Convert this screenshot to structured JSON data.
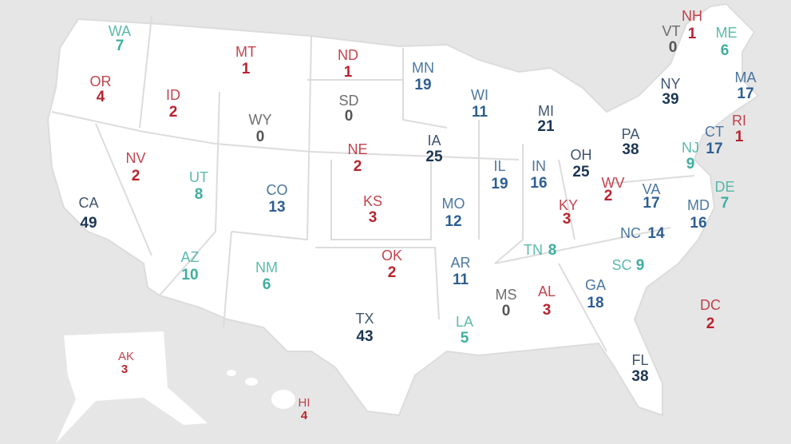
{
  "map": {
    "states": [
      {
        "abbr": "WA",
        "value": 7,
        "color": "#3fae9f"
      },
      {
        "abbr": "OR",
        "value": 4,
        "color": "#b8232f"
      },
      {
        "abbr": "ID",
        "value": 2,
        "color": "#b8232f"
      },
      {
        "abbr": "MT",
        "value": 1,
        "color": "#b8232f"
      },
      {
        "abbr": "ND",
        "value": 1,
        "color": "#b8232f"
      },
      {
        "abbr": "MN",
        "value": 19,
        "color": "#2d5f92"
      },
      {
        "abbr": "WI",
        "value": 11,
        "color": "#2d5f92"
      },
      {
        "abbr": "MI",
        "value": 21,
        "color": "#1c3553"
      },
      {
        "abbr": "NY",
        "value": 39,
        "color": "#1c3553"
      },
      {
        "abbr": "VT",
        "value": 0,
        "color": "#555555"
      },
      {
        "abbr": "NH",
        "value": 1,
        "color": "#b8232f"
      },
      {
        "abbr": "ME",
        "value": 6,
        "color": "#3fae9f"
      },
      {
        "abbr": "MA",
        "value": 17,
        "color": "#2d5f92"
      },
      {
        "abbr": "RI",
        "value": 1,
        "color": "#b8232f"
      },
      {
        "abbr": "CT",
        "value": 17,
        "color": "#2d5f92"
      },
      {
        "abbr": "NJ",
        "value": 9,
        "color": "#3fae9f"
      },
      {
        "abbr": "DE",
        "value": 7,
        "color": "#3fae9f"
      },
      {
        "abbr": "MD",
        "value": 16,
        "color": "#2d5f92"
      },
      {
        "abbr": "PA",
        "value": 38,
        "color": "#1c3553"
      },
      {
        "abbr": "OH",
        "value": 25,
        "color": "#1c3553"
      },
      {
        "abbr": "WV",
        "value": 2,
        "color": "#b8232f"
      },
      {
        "abbr": "VA",
        "value": 17,
        "color": "#2d5f92"
      },
      {
        "abbr": "NC",
        "value": 14,
        "color": "#2d5f92"
      },
      {
        "abbr": "SC",
        "value": 9,
        "color": "#3fae9f"
      },
      {
        "abbr": "GA",
        "value": 18,
        "color": "#2d5f92"
      },
      {
        "abbr": "FL",
        "value": 38,
        "color": "#1c3553"
      },
      {
        "abbr": "AL",
        "value": 3,
        "color": "#b8232f"
      },
      {
        "abbr": "MS",
        "value": 0,
        "color": "#555555"
      },
      {
        "abbr": "TN",
        "value": 8,
        "color": "#3fae9f"
      },
      {
        "abbr": "KY",
        "value": 3,
        "color": "#b8232f"
      },
      {
        "abbr": "IN",
        "value": 16,
        "color": "#2d5f92"
      },
      {
        "abbr": "IL",
        "value": 19,
        "color": "#2d5f92"
      },
      {
        "abbr": "IA",
        "value": 25,
        "color": "#1c3553"
      },
      {
        "abbr": "MO",
        "value": 12,
        "color": "#2d5f92"
      },
      {
        "abbr": "AR",
        "value": 11,
        "color": "#2d5f92"
      },
      {
        "abbr": "LA",
        "value": 5,
        "color": "#3fae9f"
      },
      {
        "abbr": "TX",
        "value": 43,
        "color": "#1c3553"
      },
      {
        "abbr": "OK",
        "value": 2,
        "color": "#b8232f"
      },
      {
        "abbr": "KS",
        "value": 3,
        "color": "#b8232f"
      },
      {
        "abbr": "NE",
        "value": 2,
        "color": "#b8232f"
      },
      {
        "abbr": "SD",
        "value": 0,
        "color": "#555555"
      },
      {
        "abbr": "WY",
        "value": 0,
        "color": "#555555"
      },
      {
        "abbr": "CO",
        "value": 13,
        "color": "#2d5f92"
      },
      {
        "abbr": "UT",
        "value": 8,
        "color": "#3fae9f"
      },
      {
        "abbr": "NV",
        "value": 2,
        "color": "#b8232f"
      },
      {
        "abbr": "CA",
        "value": 49,
        "color": "#1c3553"
      },
      {
        "abbr": "AZ",
        "value": 10,
        "color": "#3fae9f"
      },
      {
        "abbr": "NM",
        "value": 6,
        "color": "#3fae9f"
      },
      {
        "abbr": "AK",
        "value": 3,
        "color": "#b8232f"
      },
      {
        "abbr": "HI",
        "value": 4,
        "color": "#b8232f"
      },
      {
        "abbr": "DC",
        "value": 2,
        "color": "#b8232f"
      }
    ]
  }
}
